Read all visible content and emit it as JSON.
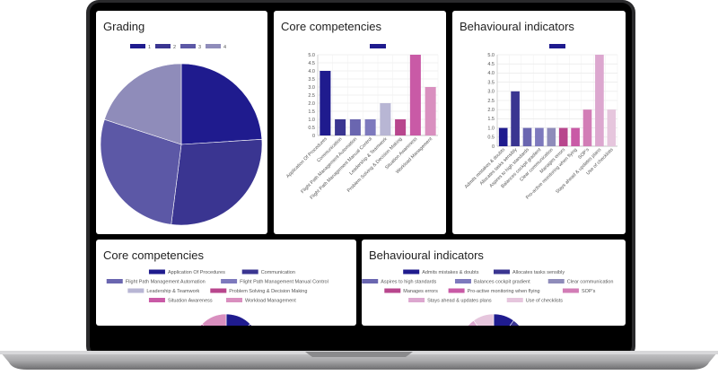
{
  "grading_panel": {
    "title": "Grading",
    "chart_data": {
      "type": "pie",
      "legend": [
        "1",
        "2",
        "3",
        "4"
      ],
      "values": [
        24,
        28,
        28,
        20
      ],
      "colors": [
        "#1f1b8e",
        "#3a3591",
        "#5c58a6",
        "#8f8cba"
      ]
    }
  },
  "core_bar_panel": {
    "title": "Core competencies",
    "chart_data": {
      "type": "bar",
      "categories": [
        "Application Of Procedures",
        "Communication",
        "Flight Path Management Automation",
        "Flight Path Management Manual Control",
        "Leadership & Teamwork",
        "Problem Solving & Decision Making",
        "Situation Awareness",
        "Workload Management"
      ],
      "values": [
        4,
        1,
        1,
        1,
        2,
        1,
        5,
        3
      ],
      "colors": [
        "#1f1b8e",
        "#3a3591",
        "#6a66b0",
        "#7d79bd",
        "#b8b6d4",
        "#b8468d",
        "#c95aa6",
        "#d98fbf"
      ],
      "yticks": [
        "0",
        "0.5",
        "1.0",
        "1.5",
        "2.0",
        "2.5",
        "3.0",
        "3.5",
        "4.0",
        "4.5",
        "5.0"
      ],
      "ylim": [
        0,
        5
      ]
    }
  },
  "behav_bar_panel": {
    "title": "Behavioural indicators",
    "chart_data": {
      "type": "bar",
      "categories": [
        "Admits mistakes & doubts",
        "Allocates tasks sensibly",
        "Aspires to high standards",
        "Balances cockpit gradient",
        "Clear communication",
        "Manages errors",
        "Pro-active monitoring when flying",
        "SOP's",
        "Stays ahead & updates plans",
        "Use of checklists"
      ],
      "values": [
        1,
        3,
        1,
        1,
        1,
        1,
        1,
        2,
        5,
        2
      ],
      "colors": [
        "#1f1b8e",
        "#3a3591",
        "#6a66b0",
        "#7d79bd",
        "#8f8cba",
        "#b8468d",
        "#c95aa6",
        "#d27db6",
        "#dca7cf",
        "#e6c6dd"
      ],
      "yticks": [
        "0",
        "0.5",
        "1.0",
        "1.5",
        "2.0",
        "2.5",
        "3.0",
        "3.5",
        "4.0",
        "4.5",
        "5.0"
      ],
      "ylim": [
        0,
        5
      ]
    }
  },
  "core_pie_panel": {
    "title": "Core competencies",
    "legend": [
      "Application Of Procedures",
      "Communication",
      "Flight Path Management Automation",
      "Flight Path Management Manual Control",
      "Leadership & Teamwork",
      "Problem Solving & Decision Making",
      "Situation Awareness",
      "Workload Management"
    ],
    "colors": [
      "#1f1b8e",
      "#3a3591",
      "#6a66b0",
      "#7d79bd",
      "#b8b6d4",
      "#b8468d",
      "#c95aa6",
      "#d98fbf"
    ]
  },
  "behav_pie_panel": {
    "title": "Behavioural indicators",
    "legend": [
      "Admits mistakes & doubts",
      "Allocates tasks sensibly",
      "Aspires to high standards",
      "Balances cockpit gradient",
      "Clear communication",
      "Manages errors",
      "Pro-active monitoring when flying",
      "SOP's",
      "Stays ahead & updates plans",
      "Use of checklists"
    ],
    "colors": [
      "#1f1b8e",
      "#3a3591",
      "#6a66b0",
      "#7d79bd",
      "#8f8cba",
      "#b8468d",
      "#c95aa6",
      "#d27db6",
      "#dca7cf",
      "#e6c6dd"
    ]
  }
}
